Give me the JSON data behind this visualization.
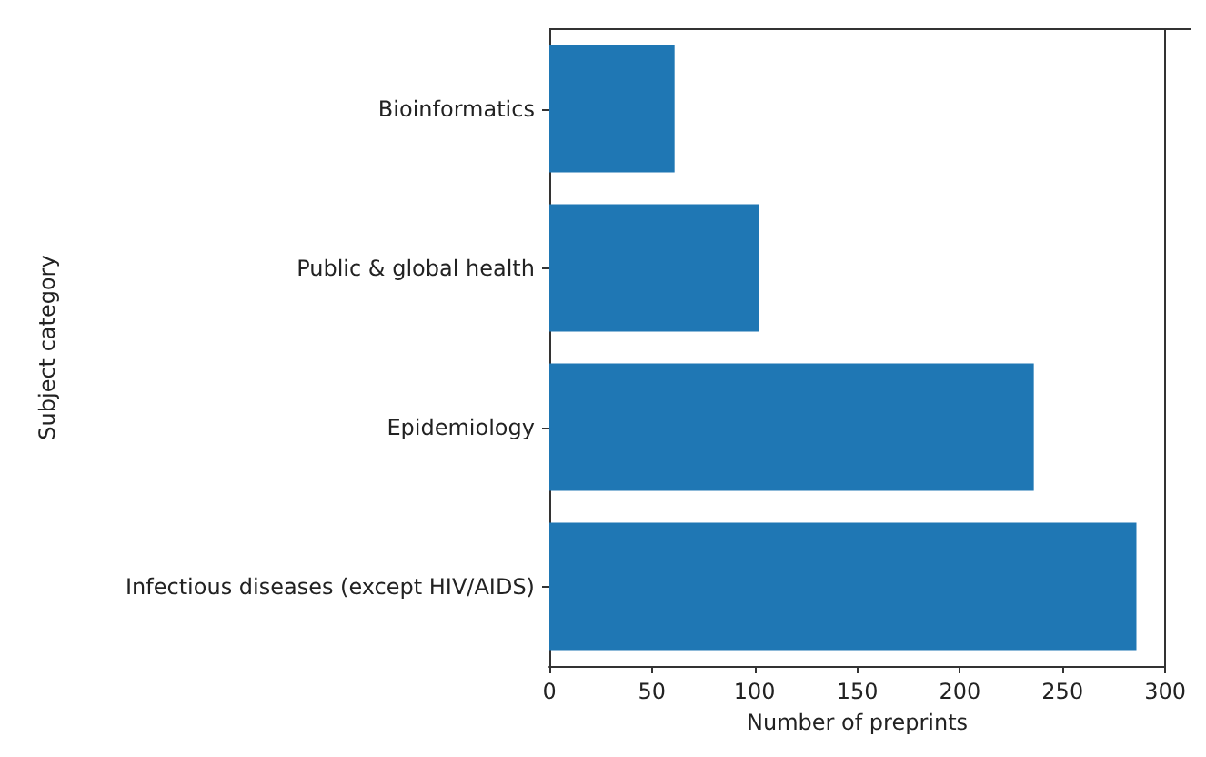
{
  "chart_data": {
    "type": "bar",
    "orientation": "horizontal",
    "categories": [
      "Bioinformatics",
      "Public & global health",
      "Epidemiology",
      "Infectious diseases (except HIV/AIDS)"
    ],
    "values": [
      61,
      102,
      236,
      286
    ],
    "color": "#1f77b4",
    "xlabel": "Number of preprints",
    "ylabel": "Subject category",
    "xlim": [
      0,
      300
    ],
    "xticks": [
      0,
      50,
      100,
      150,
      200,
      250,
      300
    ],
    "grid": false
  }
}
